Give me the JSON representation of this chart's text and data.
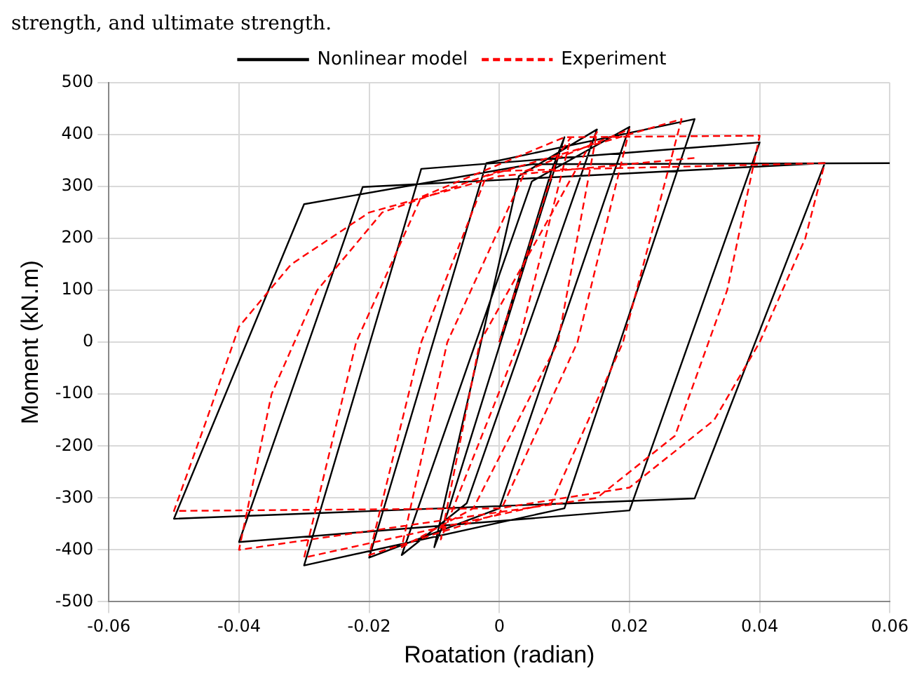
{
  "chart_data": {
    "type": "line",
    "xlabel": "Roatation (radian)",
    "ylabel": "Moment (kN.m)",
    "annotations": [
      "strength, and ultimate strength."
    ],
    "xlim": [
      -0.06,
      0.06
    ],
    "xticks": [
      -0.06,
      -0.04,
      -0.02,
      0,
      0.02,
      0.04,
      0.06
    ],
    "ylim": [
      -500,
      500
    ],
    "yticks": [
      -500,
      -400,
      -300,
      -200,
      -100,
      0,
      100,
      200,
      300,
      400,
      500
    ],
    "grid": true,
    "legend": "top",
    "marker": "none",
    "series": [
      {
        "name": "Nonlinear model",
        "color": "#000000",
        "line_style": "solid",
        "x": [
          0,
          0.008,
          0.01,
          -0.008,
          -0.01,
          0.003,
          0.015,
          -0.005,
          -0.015,
          0.005,
          0.02,
          0,
          -0.02,
          -0.002,
          0.03,
          0.01,
          -0.03,
          -0.012,
          0.04,
          0.02,
          -0.04,
          -0.021,
          0.05,
          0.03,
          -0.05,
          -0.03,
          0.005,
          0.06
        ],
        "values": [
          0,
          330,
          395,
          -330,
          -395,
          320,
          410,
          -310,
          -410,
          310,
          415,
          -320,
          -415,
          345,
          430,
          -320,
          -430,
          334,
          385,
          -324,
          -385,
          299,
          345,
          -301,
          -340,
          266,
          343,
          345
        ]
      },
      {
        "name": "Experiment",
        "color": "#ff0000",
        "line_style": "dashed",
        "x": [
          0,
          0.009,
          0.011,
          0.003,
          -0.009,
          -0.003,
          0.015,
          0.009,
          -0.004,
          -0.015,
          -0.008,
          0.004,
          0.02,
          0.012,
          0,
          -0.02,
          -0.012,
          -0.002,
          0.028,
          0.019,
          0.008,
          -0.03,
          -0.022,
          -0.012,
          0.01,
          0.04,
          0.035,
          0.027,
          0.015,
          -0.04,
          -0.035,
          -0.028,
          -0.018,
          0,
          0.05,
          0.047,
          0.04,
          0.033,
          0.02,
          0,
          -0.05,
          -0.045,
          -0.04,
          -0.032,
          -0.02,
          0,
          0.03
        ],
        "values": [
          0,
          360,
          395,
          0,
          -380,
          0,
          405,
          0,
          -320,
          -395,
          0,
          330,
          410,
          0,
          -330,
          -410,
          0,
          320,
          430,
          0,
          -310,
          -415,
          0,
          280,
          395,
          398,
          100,
          -180,
          -300,
          -400,
          -100,
          100,
          250,
          330,
          345,
          200,
          0,
          -150,
          -280,
          -320,
          -325,
          -150,
          30,
          150,
          250,
          320,
          355
        ]
      }
    ]
  }
}
